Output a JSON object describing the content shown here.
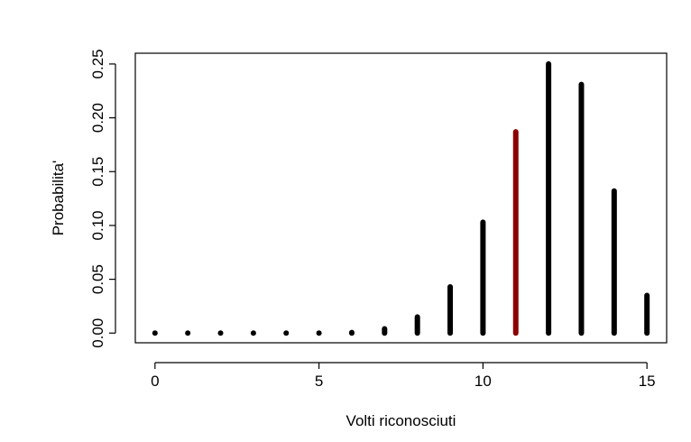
{
  "chart_data": {
    "type": "bar",
    "title": "",
    "xlabel": "Volti riconosciuti",
    "ylabel": "Probabilita'",
    "x": [
      0,
      1,
      2,
      3,
      4,
      5,
      6,
      7,
      8,
      9,
      10,
      11,
      12,
      13,
      14,
      15
    ],
    "values": [
      0.0,
      0.0,
      0.0,
      0.0,
      0.0,
      0.0,
      0.0005,
      0.004,
      0.015,
      0.043,
      0.103,
      0.187,
      0.25,
      0.231,
      0.132,
      0.035
    ],
    "xlim": [
      -0.6,
      15.6
    ],
    "ylim": [
      -0.009,
      0.26
    ],
    "xticks": [
      0,
      5,
      10,
      15
    ],
    "xtick_labels": [
      "0",
      "5",
      "10",
      "15"
    ],
    "yticks": [
      0.0,
      0.05,
      0.1,
      0.15,
      0.2,
      0.25
    ],
    "ytick_labels": [
      "0.00",
      "0.05",
      "0.10",
      "0.15",
      "0.20",
      "0.25"
    ],
    "highlight_x": 11,
    "colors": {
      "bar": "#000000",
      "highlight": "#8b0000"
    },
    "grid": false,
    "legend": "none"
  }
}
